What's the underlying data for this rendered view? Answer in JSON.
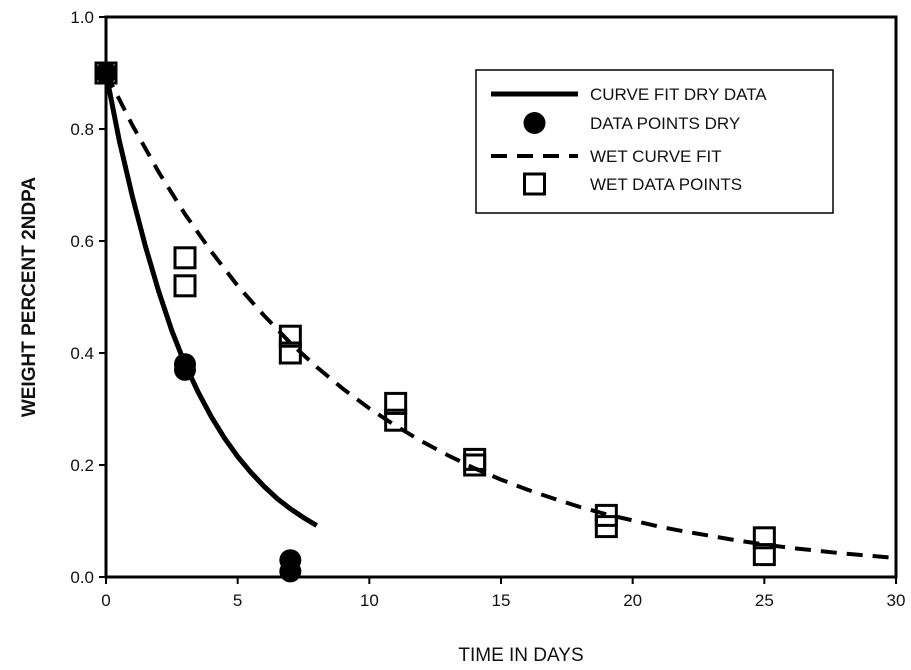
{
  "chart_data": {
    "type": "scatter",
    "title": "",
    "xlabel": "TIME IN DAYS",
    "ylabel": "WEIGHT PERCENT 2NDPA",
    "xlim": [
      0,
      30
    ],
    "ylim": [
      0,
      1.0
    ],
    "x_ticks": [
      0,
      5,
      10,
      15,
      20,
      25,
      30
    ],
    "y_ticks": [
      0.0,
      0.2,
      0.4,
      0.6,
      0.8,
      1.0
    ],
    "x_tick_labels": [
      "0",
      "5",
      "10",
      "15",
      "20",
      "25",
      "30"
    ],
    "y_tick_labels": [
      "0.0",
      "0.2",
      "0.4",
      "0.6",
      "0.8",
      "1.0"
    ],
    "grid": false,
    "legend_position": "top-right",
    "series": [
      {
        "name": "CURVE FIT DRY DATA",
        "kind": "line",
        "style": "solid",
        "color": "#000000",
        "x": [
          0,
          0.5,
          1,
          1.5,
          2,
          2.5,
          3,
          3.5,
          4,
          4.5,
          5,
          5.5,
          6,
          6.5,
          7,
          7.5,
          8
        ],
        "y": [
          0.9,
          0.78,
          0.68,
          0.59,
          0.51,
          0.44,
          0.38,
          0.33,
          0.286,
          0.248,
          0.215,
          0.187,
          0.162,
          0.14,
          0.122,
          0.106,
          0.092
        ]
      },
      {
        "name": "DATA POINTS DRY",
        "kind": "scatter",
        "marker": "filled-circle",
        "color": "#000000",
        "x": [
          0,
          3,
          3,
          7,
          7
        ],
        "y": [
          0.9,
          0.38,
          0.37,
          0.03,
          0.01
        ]
      },
      {
        "name": "WET CURVE FIT",
        "kind": "line",
        "style": "dashed",
        "color": "#000000",
        "x": [
          0,
          1,
          2,
          3,
          4,
          5,
          6,
          7,
          8,
          9,
          10,
          11,
          12,
          13,
          14,
          15,
          16,
          17,
          18,
          19,
          20,
          21,
          22,
          23,
          24,
          25,
          26,
          27,
          28,
          29,
          30
        ],
        "y": [
          0.9,
          0.807,
          0.723,
          0.648,
          0.581,
          0.52,
          0.467,
          0.418,
          0.375,
          0.336,
          0.301,
          0.27,
          0.242,
          0.217,
          0.194,
          0.174,
          0.156,
          0.14,
          0.125,
          0.112,
          0.101,
          0.09,
          0.081,
          0.073,
          0.065,
          0.058,
          0.052,
          0.047,
          0.042,
          0.038,
          0.034
        ]
      },
      {
        "name": "WET DATA POINTS",
        "kind": "scatter",
        "marker": "open-square",
        "color": "#000000",
        "x": [
          0,
          3,
          3,
          7,
          7,
          11,
          11,
          14,
          14,
          19,
          19,
          25,
          25
        ],
        "y": [
          0.9,
          0.57,
          0.52,
          0.43,
          0.4,
          0.31,
          0.28,
          0.21,
          0.2,
          0.11,
          0.09,
          0.07,
          0.04
        ]
      }
    ]
  }
}
